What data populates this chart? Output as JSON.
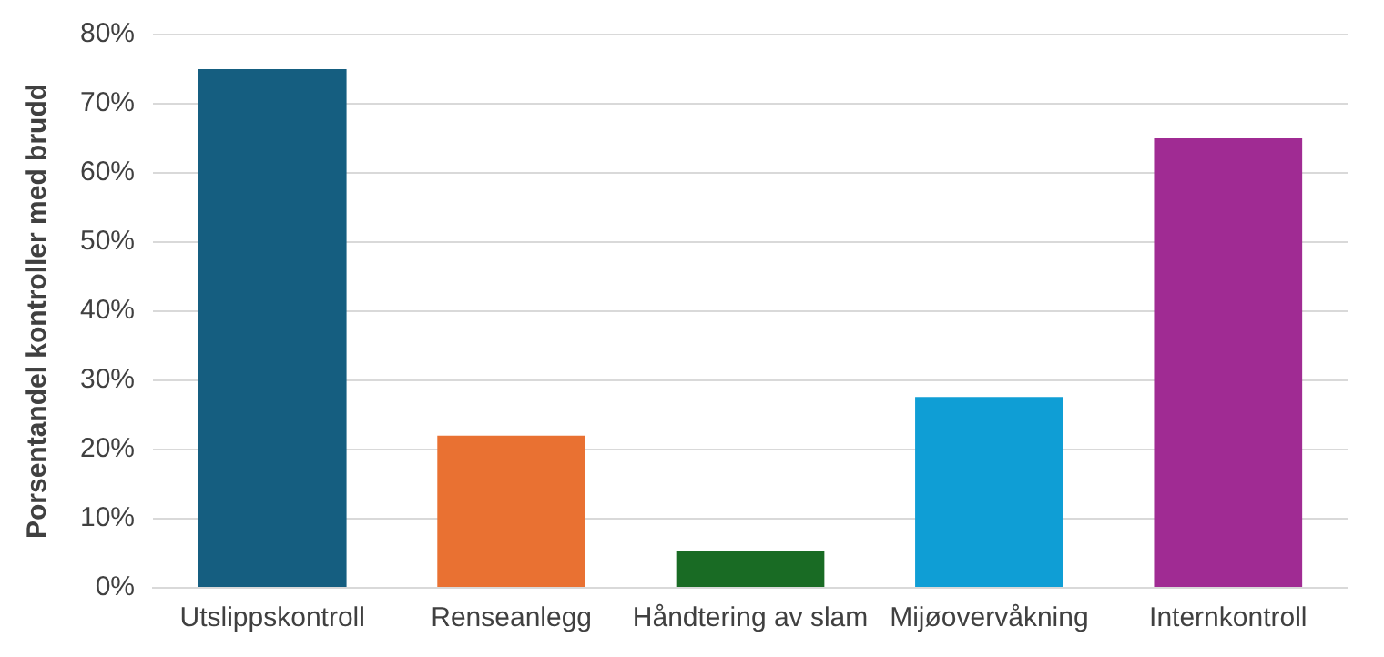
{
  "chart_data": {
    "type": "bar",
    "ylabel": "Porsentandel kontroller med brudd",
    "categories": [
      "Utslippskontroll",
      "Renseanlegg",
      "Håndtering av slam",
      "Mijøovervåkning",
      "Internkontroll"
    ],
    "values": [
      75,
      22,
      5.4,
      27.6,
      65
    ],
    "colors": [
      "#155e80",
      "#e97132",
      "#196b24",
      "#0f9ed5",
      "#a02b93"
    ],
    "ylim": [
      0,
      80
    ],
    "yticks": [
      {
        "value": 0,
        "label": "0%"
      },
      {
        "value": 10,
        "label": "10%"
      },
      {
        "value": 20,
        "label": "20%"
      },
      {
        "value": 30,
        "label": "30%"
      },
      {
        "value": 40,
        "label": "40%"
      },
      {
        "value": 50,
        "label": "50%"
      },
      {
        "value": 60,
        "label": "60%"
      },
      {
        "value": 70,
        "label": "70%"
      },
      {
        "value": 80,
        "label": "80%"
      }
    ],
    "grid": "y",
    "legend": false
  }
}
